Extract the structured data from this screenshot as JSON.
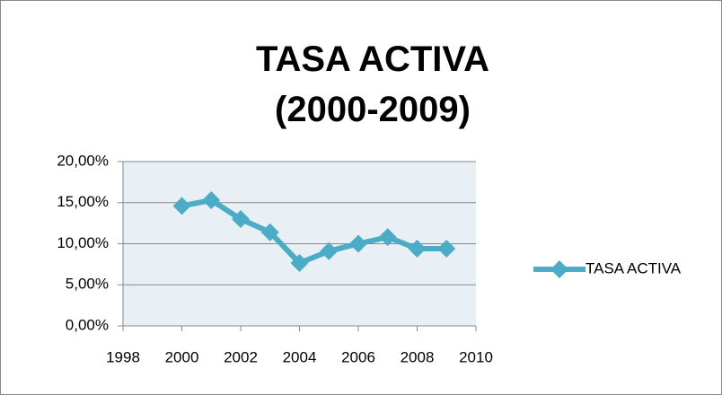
{
  "chart_data": {
    "type": "line",
    "title": "TASA ACTIVA (2000-2009)",
    "x": [
      2000,
      2001,
      2002,
      2003,
      2004,
      2005,
      2006,
      2007,
      2008,
      2009
    ],
    "series": [
      {
        "name": "TASA ACTIVA",
        "color": "#4bacc6",
        "values": [
          14.6,
          15.3,
          13.0,
          11.4,
          7.65,
          9.1,
          10.0,
          10.8,
          9.4,
          9.4
        ]
      }
    ],
    "xlim": [
      1998,
      2010
    ],
    "xticks": [
      1998,
      2000,
      2002,
      2004,
      2006,
      2008,
      2010
    ],
    "ylim": [
      0,
      20
    ],
    "yticks": [
      {
        "value": 0,
        "label": "0,00%"
      },
      {
        "value": 5,
        "label": "5,00%"
      },
      {
        "value": 10,
        "label": "10,00%"
      },
      {
        "value": 15,
        "label": "15,00%"
      },
      {
        "value": 20,
        "label": "20,00%"
      }
    ],
    "grid": true,
    "legend": "right"
  }
}
